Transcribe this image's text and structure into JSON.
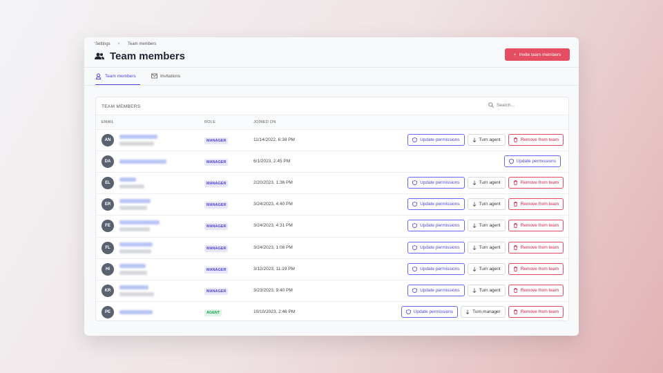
{
  "breadcrumb": [
    "Settings",
    "Team members"
  ],
  "title": "Team members",
  "invite_button": "Invite team members",
  "tabs": [
    "Team members",
    "Invitations"
  ],
  "table": {
    "title": "TEAM MEMBERS",
    "search_placeholder": "Search...",
    "columns": [
      "EMAIL",
      "ROLE",
      "JOINED ON"
    ],
    "rows": [
      {
        "initials": "AN",
        "role": "MANAGER",
        "role_color": "#4f46e5",
        "joined": "11/14/2022, 6:38 PM",
        "actions": [
          "Update permissions",
          "Turn agent",
          "Remove from team"
        ]
      },
      {
        "initials": "DA",
        "role": "MANAGER",
        "role_color": "#4f46e5",
        "joined": "6/1/2023, 2:45 PM",
        "actions": [
          "Update permissions"
        ]
      },
      {
        "initials": "EL",
        "role": "MANAGER",
        "role_color": "#4f46e5",
        "joined": "2/20/2023, 1:36 PM",
        "actions": [
          "Update permissions",
          "Turn agent",
          "Remove from team"
        ]
      },
      {
        "initials": "ER",
        "role": "MANAGER",
        "role_color": "#4f46e5",
        "joined": "3/24/2023, 4:40 PM",
        "actions": [
          "Update permissions",
          "Turn agent",
          "Remove from team"
        ]
      },
      {
        "initials": "FE",
        "role": "MANAGER",
        "role_color": "#4f46e5",
        "joined": "3/24/2023, 4:31 PM",
        "actions": [
          "Update permissions",
          "Turn agent",
          "Remove from team"
        ]
      },
      {
        "initials": "FL",
        "role": "MANAGER",
        "role_color": "#4f46e5",
        "joined": "3/24/2023, 1:08 PM",
        "actions": [
          "Update permissions",
          "Turn agent",
          "Remove from team"
        ]
      },
      {
        "initials": "HI",
        "role": "MANAGER",
        "role_color": "#4f46e5",
        "joined": "3/12/2023, 11:19 PM",
        "actions": [
          "Update permissions",
          "Turn agent",
          "Remove from team"
        ]
      },
      {
        "initials": "KR",
        "role": "MANAGER",
        "role_color": "#4f46e5",
        "joined": "3/23/2023, 9:40 PM",
        "actions": [
          "Update permissions",
          "Turn agent",
          "Remove from team"
        ]
      },
      {
        "initials": "PE",
        "role": "AGENT",
        "role_color": "#16a34a",
        "joined": "10/10/2023, 2:46 PM",
        "actions": [
          "Update permissions",
          "Turn manager",
          "Remove from team"
        ]
      }
    ]
  }
}
